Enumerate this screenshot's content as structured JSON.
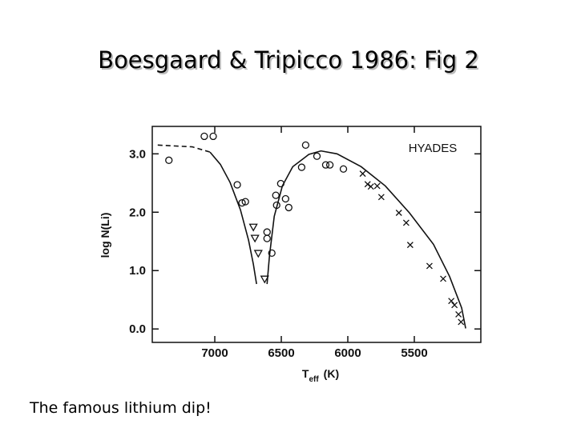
{
  "slide": {
    "title": "Boesgaard & Tripicco 1986: Fig 2",
    "caption": "The famous lithium dip!"
  },
  "chart_data": {
    "type": "scatter",
    "annotation": "HYADES",
    "ylabel": "log N(Li)",
    "xlabel": {
      "symbol": "T",
      "subscript": "eff",
      "unit": "(K)"
    },
    "xlim": [
      7470,
      5000
    ],
    "ylim": [
      -0.23,
      3.47
    ],
    "xticks": [
      7000,
      6500,
      6000,
      5500
    ],
    "yticks": [
      {
        "value": 0,
        "label": "0.0"
      },
      {
        "value": 1,
        "label": "1.0"
      },
      {
        "value": 2,
        "label": "2.0"
      },
      {
        "value": 3,
        "label": "3.0"
      }
    ],
    "color": "#111111",
    "series": [
      {
        "marker": "circle",
        "x": [
          7345,
          7079,
          7012,
          6831,
          6795,
          6770,
          6607,
          6607,
          6571,
          6541,
          6504,
          6535,
          6468,
          6444,
          6317,
          6347,
          6232,
          6166,
          6135,
          6033
        ],
        "values": [
          2.89,
          3.3,
          3.3,
          2.47,
          2.16,
          2.18,
          1.66,
          1.55,
          1.3,
          2.29,
          2.49,
          2.12,
          2.23,
          2.08,
          3.15,
          2.77,
          2.96,
          2.81,
          2.81,
          2.74
        ]
      },
      {
        "marker": "triangle-down",
        "x": [
          6710,
          6698,
          6673,
          6625
        ],
        "values": [
          1.74,
          1.55,
          1.29,
          0.85
        ]
      },
      {
        "marker": "cross",
        "x": [
          5888,
          5851,
          5827,
          5779,
          5748,
          5616,
          5561,
          5531,
          5386,
          5283,
          5222,
          5198,
          5168,
          5149
        ],
        "values": [
          2.66,
          2.48,
          2.44,
          2.45,
          2.26,
          1.99,
          1.82,
          1.44,
          1.08,
          0.86,
          0.48,
          0.41,
          0.25,
          0.12
        ]
      },
      {
        "marker": "none",
        "line": "dashed",
        "x": [
          7429,
          7169,
          7036
        ],
        "values": [
          3.15,
          3.12,
          3.03
        ]
      },
      {
        "marker": "none",
        "line": "solid",
        "x": [
          7036,
          6958,
          6885,
          6807,
          6746,
          6710,
          6686
        ],
        "values": [
          3.03,
          2.82,
          2.51,
          2.04,
          1.52,
          1.11,
          0.77
        ]
      },
      {
        "marker": "none",
        "line": "solid",
        "x": [
          6607,
          6589,
          6553,
          6492,
          6414,
          6293,
          6202,
          6081,
          5900,
          5718,
          5537,
          5356,
          5235,
          5144,
          5114
        ],
        "values": [
          0.77,
          1.25,
          1.93,
          2.45,
          2.78,
          2.99,
          3.05,
          3.0,
          2.78,
          2.45,
          1.99,
          1.45,
          0.9,
          0.36,
          0.01
        ]
      }
    ]
  }
}
